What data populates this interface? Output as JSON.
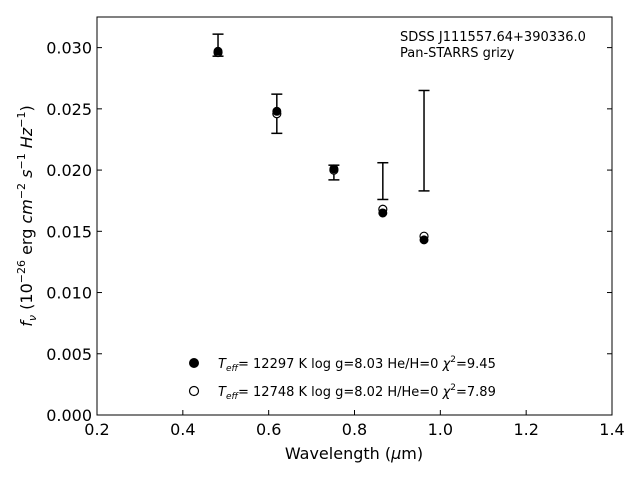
{
  "chart_data": {
    "type": "scatter",
    "annotation": {
      "line1": "SDSS J111557.64+390336.0",
      "line2": "Pan-STARRS grizy"
    },
    "xlabel": "Wavelength (μm)",
    "ylabel": "f_ν (10^-26 erg cm^-2 s^-1 Hz^-1)",
    "xlim": [
      0.2,
      1.4
    ],
    "ylim": [
      0.0,
      0.0325
    ],
    "xticks": [
      "0.2",
      "0.4",
      "0.6",
      "0.8",
      "1.0",
      "1.2",
      "1.4"
    ],
    "yticks": [
      "0.000",
      "0.005",
      "0.010",
      "0.015",
      "0.020",
      "0.025",
      "0.030"
    ],
    "grid": false,
    "legend_position": "lower-center",
    "observed": {
      "x": [
        0.482,
        0.619,
        0.752,
        0.866,
        0.962
      ],
      "y": [
        0.0302,
        0.0246,
        0.0198,
        0.0191,
        0.0224
      ],
      "yerr": [
        0.0009,
        0.0016,
        0.0006,
        0.0015,
        0.0041
      ]
    },
    "series": [
      {
        "name": "T_eff= 12297 K  log g=8.03  He/H=0  χ²=9.45",
        "marker": "filled-circle",
        "x": [
          0.482,
          0.619,
          0.752,
          0.866,
          0.962
        ],
        "y": [
          0.0297,
          0.0248,
          0.0201,
          0.0165,
          0.0143
        ]
      },
      {
        "name": "T_eff= 12748 K  log g=8.02  H/He=0  χ²=7.89",
        "marker": "open-circle",
        "x": [
          0.482,
          0.619,
          0.752,
          0.866,
          0.962
        ],
        "y": [
          0.0296,
          0.0246,
          0.02,
          0.0168,
          0.0146
        ]
      }
    ]
  }
}
